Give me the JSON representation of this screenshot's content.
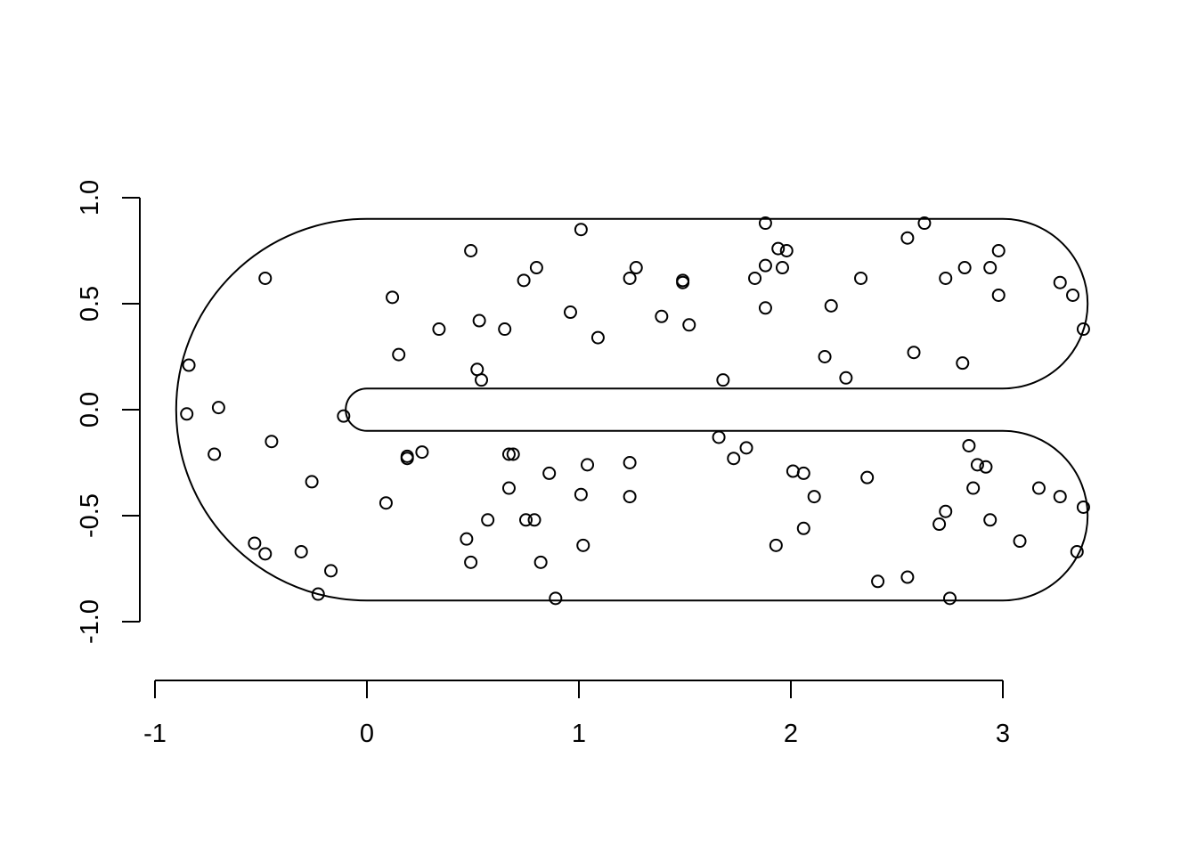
{
  "chart_data": {
    "type": "scatter",
    "title": "",
    "xlabel": "",
    "ylabel": "",
    "xlim": [
      -1,
      3
    ],
    "ylim": [
      -1,
      1
    ],
    "x_ticks": [
      -1,
      0,
      1,
      2,
      3
    ],
    "x_tick_labels": [
      "-1",
      "0",
      "1",
      "2",
      "3"
    ],
    "y_ticks": [
      -1,
      -0.5,
      0,
      0.5,
      1
    ],
    "y_tick_labels": [
      "-1.0",
      "-0.5",
      "0.0",
      "0.5",
      "1.0"
    ],
    "grid": false,
    "boundary": {
      "shape": "horseshoe",
      "outer_radius": 0.9,
      "inner_radius": 0.1,
      "end_center_x": 3,
      "end_center_y_top": 0.5,
      "end_center_y_bottom": -0.5,
      "end_radius": 0.4
    },
    "points": [
      [
        -0.84,
        0.21
      ],
      [
        -0.85,
        -0.02
      ],
      [
        -0.7,
        0.01
      ],
      [
        -0.72,
        -0.21
      ],
      [
        -0.48,
        0.62
      ],
      [
        -0.45,
        -0.15
      ],
      [
        -0.53,
        -0.63
      ],
      [
        -0.48,
        -0.68
      ],
      [
        -0.31,
        -0.67
      ],
      [
        -0.26,
        -0.34
      ],
      [
        -0.23,
        -0.87
      ],
      [
        -0.17,
        -0.76
      ],
      [
        -0.11,
        -0.03
      ],
      [
        0.09,
        -0.44
      ],
      [
        0.12,
        0.53
      ],
      [
        0.15,
        0.26
      ],
      [
        0.19,
        -0.22
      ],
      [
        0.19,
        -0.23
      ],
      [
        0.26,
        -0.2
      ],
      [
        0.34,
        0.38
      ],
      [
        0.47,
        -0.61
      ],
      [
        0.49,
        -0.72
      ],
      [
        0.49,
        0.75
      ],
      [
        0.52,
        0.19
      ],
      [
        0.53,
        0.42
      ],
      [
        0.54,
        0.14
      ],
      [
        0.57,
        -0.52
      ],
      [
        0.65,
        0.38
      ],
      [
        0.67,
        -0.37
      ],
      [
        0.67,
        -0.21
      ],
      [
        0.69,
        -0.21
      ],
      [
        0.74,
        0.61
      ],
      [
        0.75,
        -0.52
      ],
      [
        0.79,
        -0.52
      ],
      [
        0.8,
        0.67
      ],
      [
        0.82,
        -0.72
      ],
      [
        0.86,
        -0.3
      ],
      [
        0.89,
        -0.89
      ],
      [
        0.96,
        0.46
      ],
      [
        1.01,
        0.85
      ],
      [
        1.01,
        -0.4
      ],
      [
        1.02,
        -0.64
      ],
      [
        1.04,
        -0.26
      ],
      [
        1.09,
        0.34
      ],
      [
        1.24,
        0.62
      ],
      [
        1.24,
        -0.25
      ],
      [
        1.24,
        -0.41
      ],
      [
        1.27,
        0.67
      ],
      [
        1.39,
        0.44
      ],
      [
        1.49,
        0.61
      ],
      [
        1.49,
        0.6
      ],
      [
        1.52,
        0.4
      ],
      [
        1.66,
        -0.13
      ],
      [
        1.68,
        0.14
      ],
      [
        1.73,
        -0.23
      ],
      [
        1.79,
        -0.18
      ],
      [
        1.83,
        0.62
      ],
      [
        1.88,
        0.88
      ],
      [
        1.88,
        0.68
      ],
      [
        1.88,
        0.48
      ],
      [
        1.93,
        -0.64
      ],
      [
        1.94,
        0.76
      ],
      [
        1.96,
        0.67
      ],
      [
        1.98,
        0.75
      ],
      [
        2.01,
        -0.29
      ],
      [
        2.06,
        -0.3
      ],
      [
        2.06,
        -0.56
      ],
      [
        2.11,
        -0.41
      ],
      [
        2.16,
        0.25
      ],
      [
        2.19,
        0.49
      ],
      [
        2.26,
        0.15
      ],
      [
        2.33,
        0.62
      ],
      [
        2.36,
        -0.32
      ],
      [
        2.41,
        -0.81
      ],
      [
        2.55,
        0.81
      ],
      [
        2.55,
        -0.79
      ],
      [
        2.58,
        0.27
      ],
      [
        2.63,
        0.88
      ],
      [
        2.7,
        -0.54
      ],
      [
        2.73,
        0.62
      ],
      [
        2.73,
        -0.48
      ],
      [
        2.75,
        -0.89
      ],
      [
        2.81,
        0.22
      ],
      [
        2.82,
        0.67
      ],
      [
        2.84,
        -0.17
      ],
      [
        2.86,
        -0.37
      ],
      [
        2.88,
        -0.26
      ],
      [
        2.92,
        -0.27
      ],
      [
        2.94,
        0.67
      ],
      [
        2.94,
        -0.52
      ],
      [
        2.98,
        0.75
      ],
      [
        2.98,
        0.54
      ],
      [
        3.08,
        -0.62
      ],
      [
        3.17,
        -0.37
      ],
      [
        3.27,
        0.6
      ],
      [
        3.27,
        -0.41
      ],
      [
        3.33,
        0.54
      ],
      [
        3.35,
        -0.67
      ],
      [
        3.38,
        0.38
      ],
      [
        3.38,
        -0.46
      ]
    ]
  }
}
